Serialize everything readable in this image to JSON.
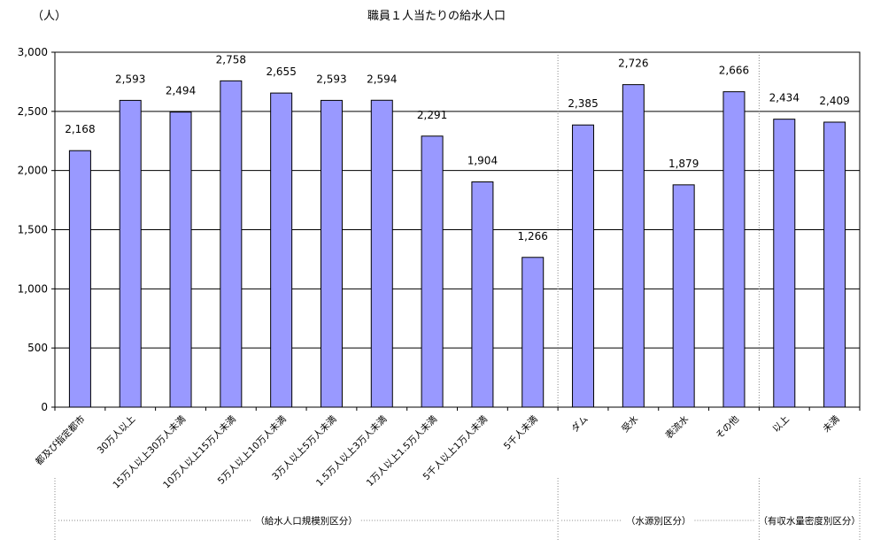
{
  "chart_data": {
    "type": "bar",
    "title": "職員１人当たりの給水人口",
    "ylabel": "（人）",
    "xlabel": "",
    "ylim": [
      0,
      3000
    ],
    "yticks": [
      "0",
      "500",
      "1,000",
      "1,500",
      "2,000",
      "2,500",
      "3,000"
    ],
    "ytick_values": [
      0,
      500,
      1000,
      1500,
      2000,
      2500,
      3000
    ],
    "grid": true,
    "bar_color": "#9999ff",
    "categories": [
      "都及び指定都市",
      "30万人以上",
      "15万人以上30万人未満",
      "10万人以上15万人未満",
      "5万人以上10万人未満",
      "3万人以上5万人未満",
      "1.5万人以上3万人未満",
      "1万人以上1.5万人未満",
      "5千人以上1万人未満",
      "5千人未満",
      "ダム",
      "受水",
      "表流水",
      "その他",
      "以上",
      "未満"
    ],
    "values": [
      2168,
      2593,
      2494,
      2758,
      2655,
      2593,
      2594,
      2291,
      1904,
      1266,
      2385,
      2726,
      1879,
      2666,
      2434,
      2409
    ],
    "value_labels": [
      "2,168",
      "2,593",
      "2,494",
      "2,758",
      "2,655",
      "2,593",
      "2,594",
      "2,291",
      "1,904",
      "1,266",
      "2,385",
      "2,726",
      "1,879",
      "2,666",
      "2,434",
      "2,409"
    ],
    "groups": [
      {
        "label": "（給水人口規模別区分）",
        "start": 0,
        "end": 9
      },
      {
        "label": "（水源別区分）",
        "start": 10,
        "end": 13
      },
      {
        "label": "（有収水量密度別区分）",
        "start": 14,
        "end": 15
      }
    ]
  }
}
